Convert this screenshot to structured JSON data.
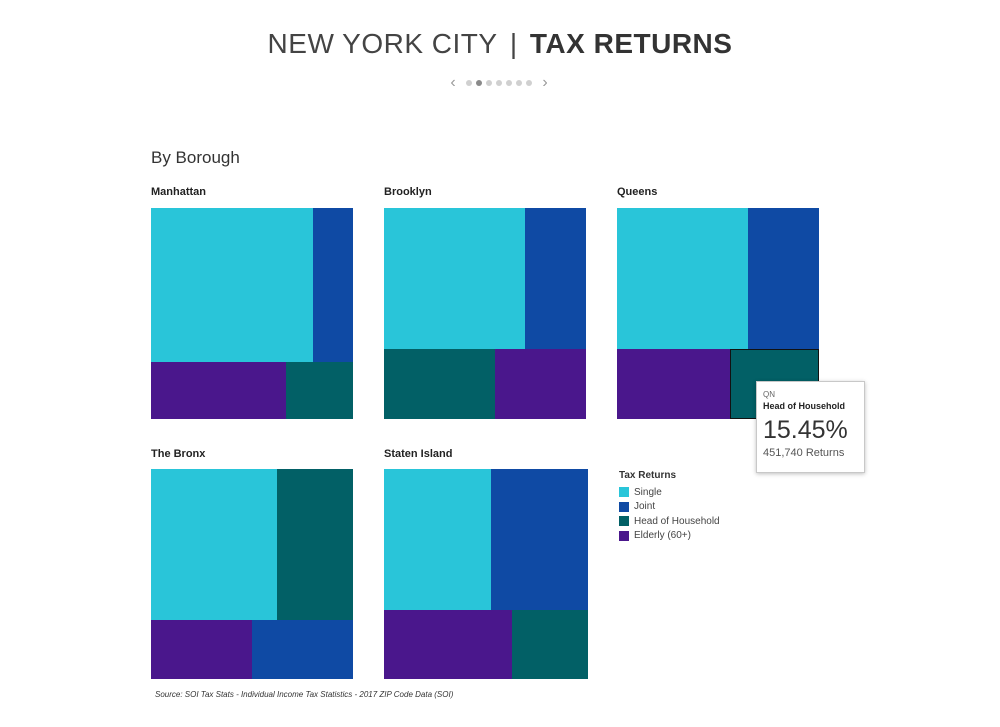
{
  "header": {
    "title_left": "NEW YORK CITY",
    "separator": "|",
    "title_right": "TAX RETURNS"
  },
  "pager": {
    "prev_icon": "chevron-left-icon",
    "next_icon": "chevron-right-icon",
    "prev_glyph": "‹",
    "next_glyph": "›",
    "pages": 7,
    "active_page": 2
  },
  "section_title": "By Borough",
  "chart_data": {
    "type": "treemap",
    "measure": "Tax Returns",
    "categories": [
      "Single",
      "Joint",
      "Head of Household",
      "Elderly (60+)"
    ],
    "colors": {
      "Single": "#29c5d9",
      "Joint": "#0f4aa4",
      "Head of Household": "#026066",
      "Elderly (60+)": "#4a178c"
    },
    "panels": [
      {
        "name": "Manhattan",
        "shares": {
          "Single": 0.68,
          "Joint": 0.17,
          "Elderly (60+)": 0.1,
          "Head of Household": 0.05
        }
      },
      {
        "name": "Brooklyn",
        "shares": {
          "Single": 0.48,
          "Joint": 0.21,
          "Head of Household": 0.17,
          "Elderly (60+)": 0.14
        }
      },
      {
        "name": "Queens",
        "shares": {
          "Single": 0.41,
          "Joint": 0.22,
          "Elderly (60+)": 0.1945,
          "Head of Household": 0.1545
        }
      },
      {
        "name": "The Bronx",
        "shares": {
          "Single": 0.45,
          "Head of Household": 0.27,
          "Elderly (60+)": 0.14,
          "Joint": 0.14
        }
      },
      {
        "name": "Staten Island",
        "shares": {
          "Single": 0.34,
          "Joint": 0.31,
          "Elderly (60+)": 0.22,
          "Head of Household": 0.13
        }
      }
    ],
    "legend_title": "Tax Returns",
    "legend": [
      "Single",
      "Joint",
      "Head of Household",
      "Elderly (60+)"
    ],
    "tooltip": {
      "code": "QN",
      "category": "Head of Household",
      "percent": "15.45%",
      "returns": "451,740 Returns"
    },
    "source": "Source: SOI Tax Stats - Individual Income Tax Statistics - 2017 ZIP Code Data (SOI)"
  }
}
